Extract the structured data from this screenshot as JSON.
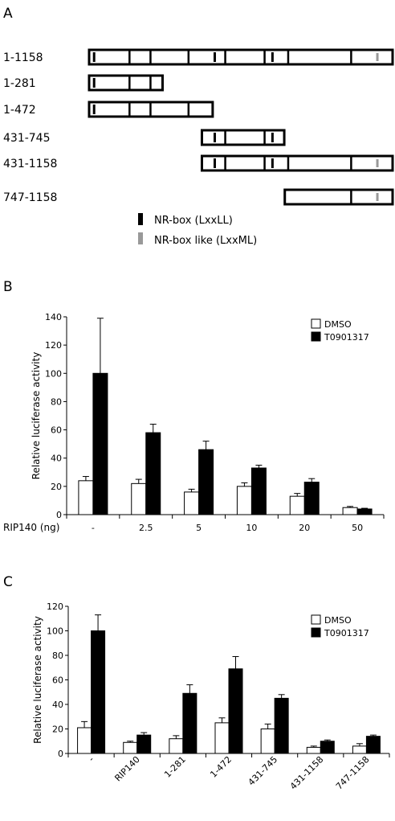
{
  "panel_a": {
    "label": "A",
    "constructs": [
      {
        "name": "1-1158",
        "start": 1,
        "end": 1158
      },
      {
        "name": "1-281",
        "start": 1,
        "end": 281
      },
      {
        "name": "1-472",
        "start": 1,
        "end": 472
      },
      {
        "name": "431-745",
        "start": 431,
        "end": 745
      },
      {
        "name": "431-1158",
        "start": 431,
        "end": 1158
      },
      {
        "name": "747-1158",
        "start": 747,
        "end": 1158
      }
    ],
    "legend": [
      {
        "label": "NR-box (LxxLL)",
        "color": "#000000"
      },
      {
        "label": "NR-box like (LxxML)",
        "color": "#999999"
      }
    ]
  },
  "chart_data": [
    {
      "panel": "B",
      "type": "bar",
      "xlabel": "RIP140 (ng)",
      "ylabel": "Relative luciferase activity",
      "ylim": [
        0,
        140
      ],
      "yticks": [
        0,
        20,
        40,
        60,
        80,
        100,
        120,
        140
      ],
      "categories": [
        "-",
        "2.5",
        "5",
        "10",
        "20",
        "50"
      ],
      "series": [
        {
          "name": "DMSO",
          "color": "#ffffff",
          "values": [
            24,
            22,
            16,
            20,
            13,
            5
          ],
          "errors": [
            3,
            3,
            2,
            2.5,
            2,
            0.8
          ]
        },
        {
          "name": "T0901317",
          "color": "#000000",
          "values": [
            100,
            58,
            46,
            33,
            23,
            4
          ],
          "errors": [
            39,
            6,
            6,
            2,
            2.5,
            0.5
          ]
        }
      ],
      "legend_position": "top-right"
    },
    {
      "panel": "C",
      "type": "bar",
      "xlabel": "",
      "ylabel": "Relative luciferase activity",
      "ylim": [
        0,
        120
      ],
      "yticks": [
        0,
        20,
        40,
        60,
        80,
        100,
        120
      ],
      "categories": [
        "-",
        "RIP140",
        "1-281",
        "1-472",
        "431-745",
        "431-1158",
        "747-1158"
      ],
      "series": [
        {
          "name": "DMSO",
          "color": "#ffffff",
          "values": [
            21,
            9,
            12,
            25,
            20,
            5,
            6
          ],
          "errors": [
            5,
            1,
            2.5,
            4,
            4,
            1,
            2
          ]
        },
        {
          "name": "T0901317",
          "color": "#000000",
          "values": [
            100,
            15,
            49,
            69,
            45,
            10,
            14
          ],
          "errors": [
            13,
            2,
            7,
            10,
            3,
            1,
            1
          ]
        }
      ],
      "legend_position": "top-right"
    }
  ],
  "panel_labels": {
    "b": "B",
    "c": "C"
  }
}
